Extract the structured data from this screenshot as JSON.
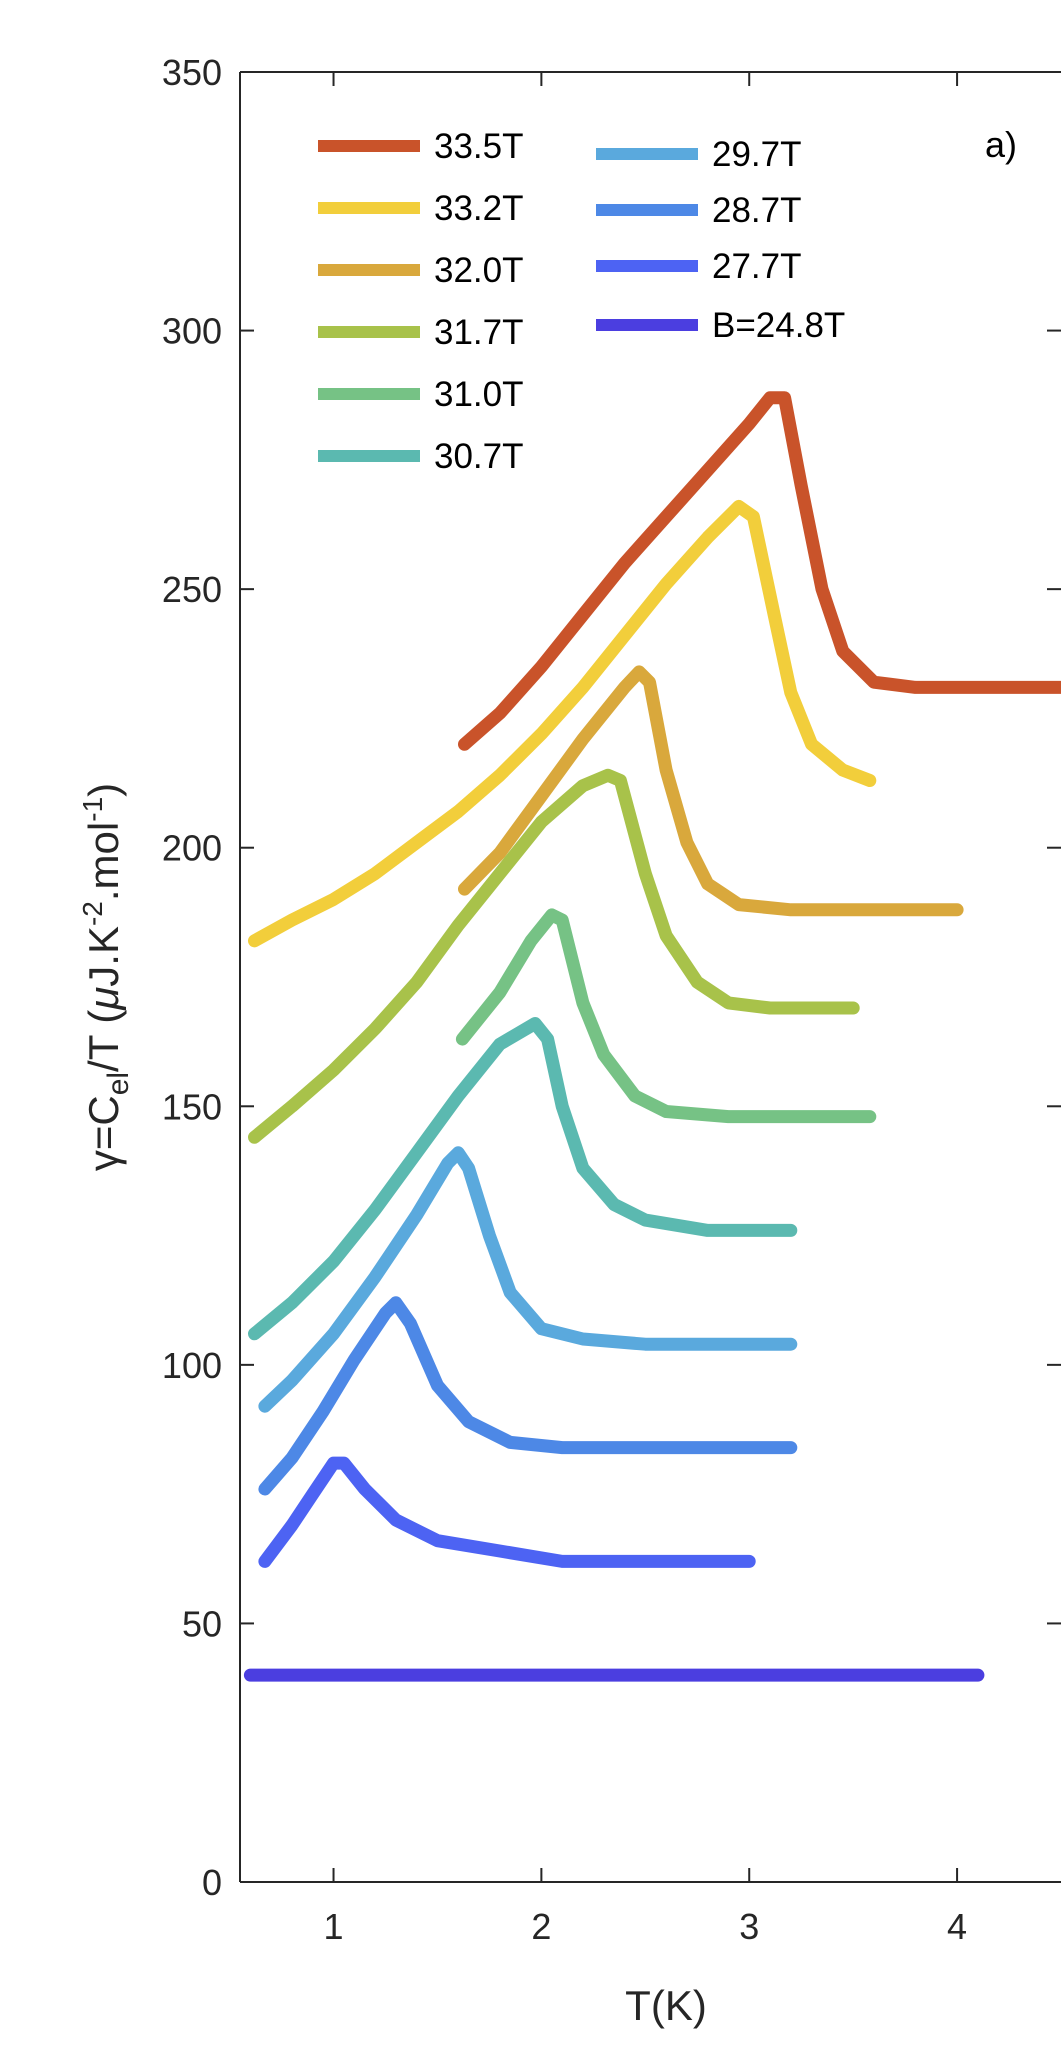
{
  "chart_data": {
    "type": "line",
    "panel_label": "a)",
    "xlabel": "T(K)",
    "ylabel": {
      "prefix": "γ=C",
      "sub": "el",
      "mid": "/T (",
      "mu": "μ",
      "unit_a": "J.K",
      "exp_a": "-2",
      "unit_b": ".mol",
      "exp_b": "-1",
      "suffix": ")"
    },
    "xlim": [
      0.55,
      4.5
    ],
    "ylim": [
      0,
      350
    ],
    "xticks": [
      1,
      2,
      3,
      4
    ],
    "yticks": [
      0,
      50,
      100,
      150,
      200,
      250,
      300,
      350
    ],
    "grid": false,
    "legend_position": "top-left",
    "series": [
      {
        "name": "33.5T",
        "color": "#C9532A",
        "points": [
          [
            1.63,
            220
          ],
          [
            1.8,
            226
          ],
          [
            2.0,
            235
          ],
          [
            2.2,
            245
          ],
          [
            2.4,
            255
          ],
          [
            2.6,
            264
          ],
          [
            2.8,
            273
          ],
          [
            3.0,
            282
          ],
          [
            3.1,
            287
          ],
          [
            3.17,
            287
          ],
          [
            3.25,
            270
          ],
          [
            3.35,
            250
          ],
          [
            3.45,
            238
          ],
          [
            3.6,
            232
          ],
          [
            3.8,
            231
          ],
          [
            4.0,
            231
          ],
          [
            4.2,
            231
          ],
          [
            4.5,
            231
          ]
        ]
      },
      {
        "name": "33.2T",
        "color": "#F2CE3B",
        "points": [
          [
            0.62,
            182
          ],
          [
            0.8,
            186
          ],
          [
            1.0,
            190
          ],
          [
            1.2,
            195
          ],
          [
            1.4,
            201
          ],
          [
            1.6,
            207
          ],
          [
            1.8,
            214
          ],
          [
            2.0,
            222
          ],
          [
            2.2,
            231
          ],
          [
            2.4,
            241
          ],
          [
            2.6,
            251
          ],
          [
            2.8,
            260
          ],
          [
            2.95,
            266
          ],
          [
            3.02,
            264
          ],
          [
            3.12,
            245
          ],
          [
            3.2,
            230
          ],
          [
            3.3,
            220
          ],
          [
            3.45,
            215
          ],
          [
            3.58,
            213
          ]
        ]
      },
      {
        "name": "32.0T",
        "color": "#D9A83C",
        "points": [
          [
            1.63,
            192
          ],
          [
            1.8,
            199
          ],
          [
            2.0,
            210
          ],
          [
            2.2,
            221
          ],
          [
            2.4,
            231
          ],
          [
            2.47,
            234
          ],
          [
            2.52,
            232
          ],
          [
            2.6,
            215
          ],
          [
            2.7,
            201
          ],
          [
            2.8,
            193
          ],
          [
            2.95,
            189
          ],
          [
            3.2,
            188
          ],
          [
            3.5,
            188
          ],
          [
            3.8,
            188
          ],
          [
            4.0,
            188
          ]
        ]
      },
      {
        "name": "31.7T",
        "color": "#A8C24A",
        "points": [
          [
            0.62,
            144
          ],
          [
            0.8,
            150
          ],
          [
            1.0,
            157
          ],
          [
            1.2,
            165
          ],
          [
            1.4,
            174
          ],
          [
            1.6,
            185
          ],
          [
            1.8,
            195
          ],
          [
            2.0,
            205
          ],
          [
            2.2,
            212
          ],
          [
            2.32,
            214
          ],
          [
            2.38,
            213
          ],
          [
            2.5,
            195
          ],
          [
            2.6,
            183
          ],
          [
            2.75,
            174
          ],
          [
            2.9,
            170
          ],
          [
            3.1,
            169
          ],
          [
            3.3,
            169
          ],
          [
            3.5,
            169
          ]
        ]
      },
      {
        "name": "31.0T",
        "color": "#76C285",
        "points": [
          [
            1.62,
            163
          ],
          [
            1.8,
            172
          ],
          [
            1.95,
            182
          ],
          [
            2.05,
            187
          ],
          [
            2.1,
            186
          ],
          [
            2.2,
            170
          ],
          [
            2.3,
            160
          ],
          [
            2.45,
            152
          ],
          [
            2.6,
            149
          ],
          [
            2.9,
            148
          ],
          [
            3.2,
            148
          ],
          [
            3.58,
            148
          ]
        ]
      },
      {
        "name": "30.7T",
        "color": "#5BB9B0",
        "points": [
          [
            0.62,
            106
          ],
          [
            0.8,
            112
          ],
          [
            1.0,
            120
          ],
          [
            1.2,
            130
          ],
          [
            1.4,
            141
          ],
          [
            1.6,
            152
          ],
          [
            1.8,
            162
          ],
          [
            1.97,
            166
          ],
          [
            2.03,
            163
          ],
          [
            2.1,
            150
          ],
          [
            2.2,
            138
          ],
          [
            2.35,
            131
          ],
          [
            2.5,
            128
          ],
          [
            2.8,
            126
          ],
          [
            3.2,
            126
          ]
        ]
      },
      {
        "name": "29.7T",
        "color": "#5AA9DD",
        "points": [
          [
            0.67,
            92
          ],
          [
            0.8,
            97
          ],
          [
            1.0,
            106
          ],
          [
            1.2,
            117
          ],
          [
            1.4,
            129
          ],
          [
            1.55,
            139
          ],
          [
            1.6,
            141
          ],
          [
            1.65,
            138
          ],
          [
            1.75,
            125
          ],
          [
            1.85,
            114
          ],
          [
            2.0,
            107
          ],
          [
            2.2,
            105
          ],
          [
            2.5,
            104
          ],
          [
            2.8,
            104
          ],
          [
            3.2,
            104
          ]
        ]
      },
      {
        "name": "28.7T",
        "color": "#4D88E6",
        "points": [
          [
            0.67,
            76
          ],
          [
            0.8,
            82
          ],
          [
            0.95,
            91
          ],
          [
            1.1,
            101
          ],
          [
            1.25,
            110
          ],
          [
            1.3,
            112
          ],
          [
            1.37,
            108
          ],
          [
            1.5,
            96
          ],
          [
            1.65,
            89
          ],
          [
            1.85,
            85
          ],
          [
            2.1,
            84
          ],
          [
            2.5,
            84
          ],
          [
            2.8,
            84
          ],
          [
            3.2,
            84
          ]
        ]
      },
      {
        "name": "27.7T",
        "color": "#4D63F3",
        "points": [
          [
            0.67,
            62
          ],
          [
            0.8,
            69
          ],
          [
            0.9,
            75
          ],
          [
            1.0,
            81
          ],
          [
            1.05,
            81
          ],
          [
            1.15,
            76
          ],
          [
            1.3,
            70
          ],
          [
            1.5,
            66
          ],
          [
            1.8,
            64
          ],
          [
            2.1,
            62
          ],
          [
            2.5,
            62
          ],
          [
            3.0,
            62
          ]
        ]
      },
      {
        "name": "B=24.8T",
        "color": "#4B3EE0",
        "points": [
          [
            0.6,
            40
          ],
          [
            1.0,
            40
          ],
          [
            1.5,
            40
          ],
          [
            2.0,
            40
          ],
          [
            2.5,
            40
          ],
          [
            3.0,
            40
          ],
          [
            3.5,
            40
          ],
          [
            4.1,
            40
          ]
        ]
      }
    ]
  }
}
